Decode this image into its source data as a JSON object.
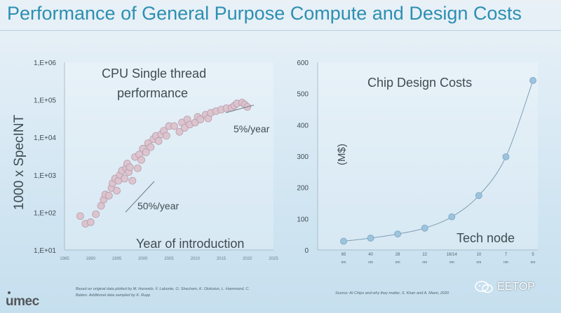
{
  "slide": {
    "title": "Performance of General Purpose Compute and Design Costs",
    "logo": "umec",
    "watermark": "EETOP"
  },
  "colors": {
    "title": "#2c8fb1",
    "bubble": "#dcc3cd",
    "bubble_stroke": "#b79aa8",
    "node_marker": "#9dc3dd",
    "curve": "#7f9fb5"
  },
  "chart_data": [
    {
      "type": "scatter",
      "title": "CPU Single thread performance",
      "title_lines": [
        "CPU Single thread",
        "performance"
      ],
      "xlabel": "Year of introduction",
      "ylabel": "1000 x SpecINT",
      "yscale": "log",
      "xlim": [
        1985,
        2025
      ],
      "ylim": [
        10,
        1000000
      ],
      "xticks": [
        "1985",
        "1990",
        "1995",
        "2000",
        "2005",
        "2010",
        "2015",
        "2020",
        "2025"
      ],
      "yticks": [
        "1,E+01",
        "1,E+02",
        "1,E+03",
        "1,E+04",
        "1,E+05",
        "1,E+06"
      ],
      "grid": false,
      "annotations": [
        "50%/year",
        "5%/year"
      ],
      "source": "Based on original data plotted by M. Horowitz, F. Labonte, O. Shacham, K. Olukotun, L. Hammond, C. Batten. Additional data sampled by K. Rupp",
      "points": [
        [
          1988.0,
          80
        ],
        [
          1989.0,
          50
        ],
        [
          1990.0,
          55
        ],
        [
          1991.0,
          90
        ],
        [
          1992.0,
          150
        ],
        [
          1992.5,
          220
        ],
        [
          1992.8,
          300
        ],
        [
          1993.5,
          280
        ],
        [
          1994.0,
          450
        ],
        [
          1994.2,
          600
        ],
        [
          1994.7,
          800
        ],
        [
          1995.0,
          380
        ],
        [
          1995.3,
          700
        ],
        [
          1995.6,
          1000
        ],
        [
          1996.0,
          1300
        ],
        [
          1996.5,
          800
        ],
        [
          1996.8,
          1500
        ],
        [
          1997.0,
          2000
        ],
        [
          1997.3,
          1200
        ],
        [
          1997.5,
          1600
        ],
        [
          1998.0,
          700
        ],
        [
          1998.5,
          3000
        ],
        [
          1999.0,
          1500
        ],
        [
          1999.3,
          3500
        ],
        [
          1999.7,
          2500
        ],
        [
          2000.0,
          5000
        ],
        [
          2000.6,
          4000
        ],
        [
          2001.0,
          7000
        ],
        [
          2001.5,
          5500
        ],
        [
          2002.0,
          9000
        ],
        [
          2002.5,
          11000
        ],
        [
          2003.0,
          8000
        ],
        [
          2003.5,
          12000
        ],
        [
          2004.0,
          15000
        ],
        [
          2004.5,
          11000
        ],
        [
          2005.0,
          20000
        ],
        [
          2006.0,
          20000
        ],
        [
          2007.0,
          14000
        ],
        [
          2007.5,
          25000
        ],
        [
          2008.0,
          18000
        ],
        [
          2008.5,
          30000
        ],
        [
          2009.0,
          22000
        ],
        [
          2010.0,
          25000
        ],
        [
          2010.5,
          35000
        ],
        [
          2011.0,
          30000
        ],
        [
          2012.0,
          40000
        ],
        [
          2012.5,
          32000
        ],
        [
          2013.0,
          45000
        ],
        [
          2014.0,
          50000
        ],
        [
          2015.0,
          55000
        ],
        [
          2016.0,
          60000
        ],
        [
          2017.0,
          62000
        ],
        [
          2017.5,
          70000
        ],
        [
          2018.0,
          80000
        ],
        [
          2019.0,
          85000
        ],
        [
          2019.5,
          75000
        ],
        [
          2020.0,
          65000
        ]
      ]
    },
    {
      "type": "line",
      "title": "Chip Design Costs",
      "xlabel": "Tech node",
      "ylabel": "(M$)",
      "categories": [
        "65 nm",
        "40 nm",
        "28 nm",
        "22 nm",
        "16/14 nm",
        "10 nm",
        "7 nm",
        "5 nm"
      ],
      "values": [
        28,
        38,
        51,
        70,
        106,
        174,
        298,
        542
      ],
      "ylim": [
        0,
        600
      ],
      "yticks": [
        "0",
        "100",
        "200",
        "300",
        "400",
        "500",
        "600"
      ],
      "grid": false,
      "source": "Source: AI Chips and why they matter, S. Khan and A. Mann, 2020"
    }
  ]
}
